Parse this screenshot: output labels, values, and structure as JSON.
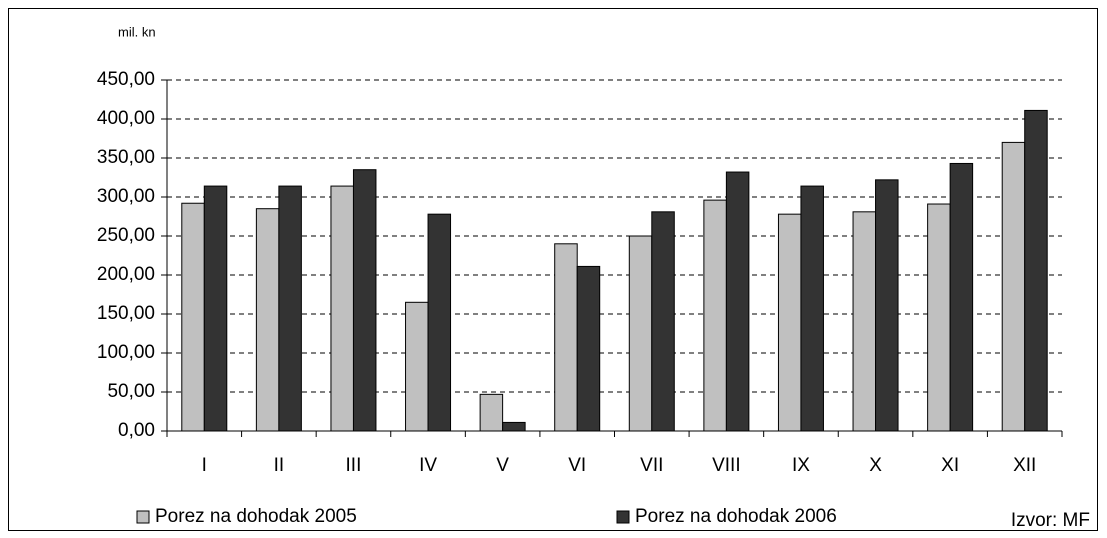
{
  "chart_data": {
    "type": "bar",
    "unit_label": "mil. kn",
    "source": "Izvor: MF",
    "categories": [
      "I",
      "II",
      "III",
      "IV",
      "V",
      "VI",
      "VII",
      "VIII",
      "IX",
      "X",
      "XI",
      "XII"
    ],
    "series": [
      {
        "name": "Porez na dohodak 2005",
        "color": "#c0c0c0",
        "values": [
          292,
          285,
          314,
          165,
          47,
          240,
          250,
          296,
          278,
          281,
          291,
          370
        ]
      },
      {
        "name": "Porez na dohodak 2006",
        "color": "#333333",
        "values": [
          314,
          314,
          335,
          278,
          11,
          211,
          281,
          332,
          314,
          322,
          343,
          411
        ]
      }
    ],
    "ylim": [
      0,
      450
    ],
    "yticks": [
      {
        "value": 0,
        "label": "0,00"
      },
      {
        "value": 50,
        "label": "50,00"
      },
      {
        "value": 100,
        "label": "100,00"
      },
      {
        "value": 150,
        "label": "150,00"
      },
      {
        "value": 200,
        "label": "200,00"
      },
      {
        "value": 250,
        "label": "250,00"
      },
      {
        "value": 300,
        "label": "300,00"
      },
      {
        "value": 350,
        "label": "350,00"
      },
      {
        "value": 400,
        "label": "400,00"
      },
      {
        "value": 450,
        "label": "450,00"
      }
    ],
    "grid": true
  }
}
